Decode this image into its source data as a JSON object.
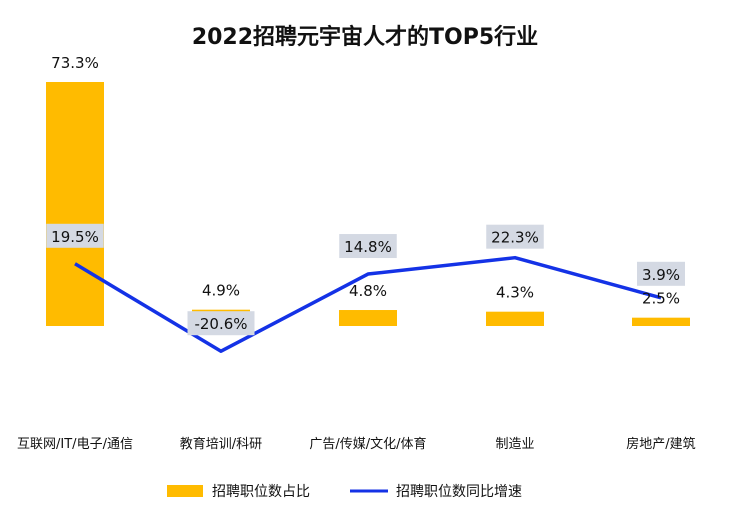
{
  "chart_data": {
    "type": "bar+line",
    "title": "2022招聘元宇宙人才的TOP5行业",
    "categories": [
      "互联网/IT/电子/通信",
      "教育培训/科研",
      "广告/传媒/文化/体育",
      "制造业",
      "房地产/建筑"
    ],
    "series": [
      {
        "name": "招聘职位数占比",
        "type": "bar",
        "values": [
          73.3,
          4.9,
          4.8,
          4.3,
          2.5
        ],
        "labels": [
          "73.3%",
          "4.9%",
          "4.8%",
          "4.3%",
          "2.5%"
        ],
        "color": "#ffbb00"
      },
      {
        "name": "招聘职位数同比增速",
        "type": "line",
        "values": [
          19.5,
          -20.6,
          14.8,
          22.3,
          3.9
        ],
        "labels": [
          "19.5%",
          "-20.6%",
          "14.8%",
          "22.3%",
          "3.9%"
        ],
        "color": "#1432e6"
      }
    ],
    "legend_position": "bottom",
    "grid": false
  }
}
